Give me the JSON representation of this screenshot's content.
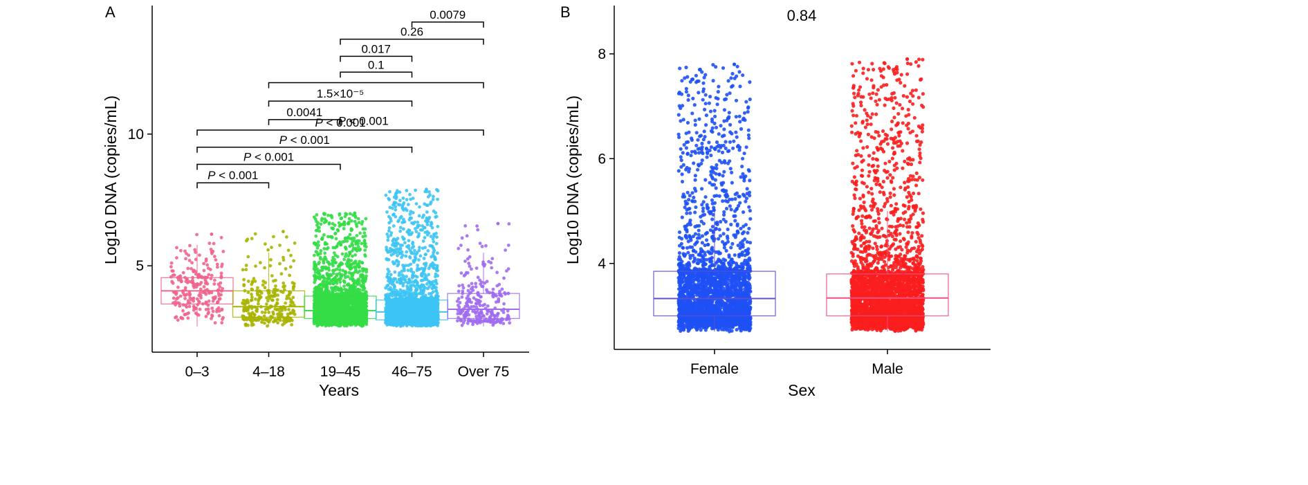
{
  "chart_data": [
    {
      "panel": "A",
      "type": "box-jitter",
      "xlabel": "Years",
      "ylabel": "Log10 DNA (copies/mL)",
      "ylim": [
        2.3,
        14.3
      ],
      "y_ticks": [
        5,
        10
      ],
      "categories": [
        "0–3",
        "4–18",
        "19–45",
        "46–75",
        "Over 75"
      ],
      "colors": [
        "#f0648c",
        "#a8b400",
        "#34dc46",
        "#3cc4f4",
        "#a06cf0"
      ],
      "point_counts": [
        230,
        280,
        2600,
        2600,
        260
      ],
      "box_stats": [
        {
          "q1": 3.55,
          "median": 4.05,
          "q3": 4.55,
          "whisker_low": 2.7,
          "whisker_high": 5.8,
          "max_point": 6.2
        },
        {
          "q1": 3.05,
          "median": 3.45,
          "q3": 4.05,
          "whisker_low": 2.7,
          "whisker_high": 5.5,
          "max_point": 6.3
        },
        {
          "q1": 3.0,
          "median": 3.3,
          "q3": 3.85,
          "whisker_low": 2.7,
          "whisker_high": 5.1,
          "max_point": 7.0
        },
        {
          "q1": 2.95,
          "median": 3.25,
          "q3": 3.7,
          "whisker_low": 2.7,
          "whisker_high": 4.8,
          "max_point": 7.9
        },
        {
          "q1": 3.0,
          "median": 3.35,
          "q3": 3.95,
          "whisker_low": 2.7,
          "whisker_high": 5.5,
          "max_point": 6.6
        }
      ],
      "comparisons": [
        {
          "from": 0,
          "to": 1,
          "label": "P < 0.001",
          "italic_p": true,
          "y": 8.15
        },
        {
          "from": 0,
          "to": 2,
          "label": "P < 0.001",
          "italic_p": true,
          "y": 8.85
        },
        {
          "from": 0,
          "to": 3,
          "label": "P < 0.001",
          "italic_p": true,
          "y": 9.5
        },
        {
          "from": 0,
          "to": 4,
          "label": "P < 0.001",
          "italic_p": true,
          "y": 10.15
        },
        {
          "from": 1,
          "to": 2,
          "label": "0.0041",
          "italic_p": false,
          "y": 10.55
        },
        {
          "from": 1,
          "to": 3,
          "label": "1.5×10⁻⁵",
          "italic_p": false,
          "y": 11.25
        },
        {
          "from": 1,
          "to": 4,
          "label": "",
          "italic_p": false,
          "y": 11.95
        },
        {
          "from": 2,
          "to": 3,
          "label": "0.1",
          "italic_p": false,
          "y": 12.35
        },
        {
          "from": 2,
          "to": 3,
          "label": "0.017",
          "italic_p": false,
          "y": 12.95
        },
        {
          "from": 2,
          "to": 4,
          "label": "0.26",
          "italic_p": false,
          "y": 13.6
        },
        {
          "from": 3,
          "to": 4,
          "label": "0.0079",
          "italic_p": false,
          "y": 14.25
        }
      ],
      "extra_labels": [
        {
          "label": "P < 0.001",
          "italic_p": true,
          "y": 10.5,
          "x_from": 2.03
        }
      ]
    },
    {
      "panel": "B",
      "type": "box-jitter",
      "xlabel": "Sex",
      "ylabel": "Log10 DNA (copies/mL)",
      "ylim": [
        2.65,
        8.5
      ],
      "y_ticks": [
        4,
        6,
        8
      ],
      "categories": [
        "Female",
        "Male"
      ],
      "colors": [
        "#1e50f5",
        "#fa1e1e"
      ],
      "box_colors": [
        "#5a50d0",
        "#f05080"
      ],
      "point_counts": [
        2900,
        3300
      ],
      "box_stats": [
        {
          "q1": 3.0,
          "median": 3.33,
          "q3": 3.85,
          "whisker_low": 2.7,
          "whisker_high": 5.0,
          "max_point": 7.8
        },
        {
          "q1": 3.0,
          "median": 3.34,
          "q3": 3.8,
          "whisker_low": 2.7,
          "whisker_high": 5.0,
          "max_point": 7.9
        }
      ],
      "overall_p": "0.84"
    }
  ],
  "panels": {
    "a": {
      "label": "A"
    },
    "b": {
      "label": "B"
    }
  }
}
